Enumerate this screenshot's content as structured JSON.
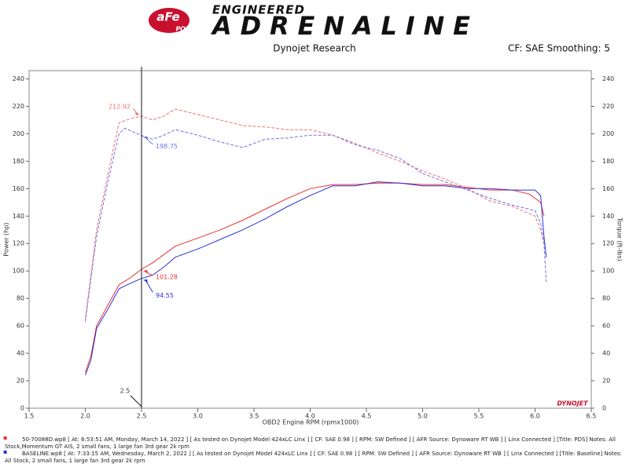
{
  "header": {
    "brand": "aFe",
    "brand_sub": "POWER",
    "tagline_top": "ENGINEERED",
    "tagline": "ADRENALINE"
  },
  "chart_data": {
    "type": "line",
    "title": "Dynojet Research",
    "subtitle": "CF: SAE Smoothing: 5",
    "x_label": "OBD2 Engine RPM (rpmx1000)",
    "y_label": "Power (hp)",
    "y2_label": "Torque (ft-lbs)",
    "watermark": "DYNOJET",
    "xlim": [
      1.5,
      6.5
    ],
    "ylim": [
      0,
      246
    ],
    "y2lim": [
      0,
      246
    ],
    "xticks": [
      1.5,
      {
        "value": 2,
        "label": "2.0"
      },
      2.5,
      {
        "value": 3,
        "label": "3.0"
      },
      3.5,
      {
        "value": 4,
        "label": "4.0"
      },
      4.5,
      {
        "value": 5,
        "label": "5.0"
      },
      5.5,
      {
        "value": 6,
        "label": "6.0"
      },
      6.5
    ],
    "yticks": [
      0,
      20,
      40,
      60,
      80,
      100,
      120,
      140,
      160,
      180,
      200,
      220,
      240
    ],
    "y2ticks": [
      0,
      20,
      40,
      60,
      80,
      100,
      120,
      140,
      160,
      180,
      200,
      220,
      240
    ],
    "grid": false,
    "series": [
      {
        "color": "#e8332f",
        "dash": false,
        "x": [
          2.0,
          2.05,
          2.1,
          2.2,
          2.3,
          2.4,
          2.5,
          2.6,
          2.7,
          2.8,
          3.0,
          3.2,
          3.4,
          3.6,
          3.8,
          4.0,
          4.2,
          4.4,
          4.6,
          4.8,
          5.0,
          5.2,
          5.4,
          5.6,
          5.8,
          5.95,
          6.0,
          6.05,
          6.08
        ],
        "values": [
          26,
          38,
          60,
          75,
          90,
          95,
          101.28,
          106,
          112,
          118,
          124,
          130,
          137,
          145,
          153,
          160,
          163,
          163,
          164,
          164,
          163,
          163,
          161,
          159,
          159,
          156,
          153,
          150,
          140
        ]
      },
      {
        "color": "#2f2fd6",
        "dash": false,
        "x": [
          2.0,
          2.05,
          2.1,
          2.2,
          2.3,
          2.4,
          2.5,
          2.6,
          2.7,
          2.8,
          3.0,
          3.2,
          3.4,
          3.6,
          3.8,
          4.0,
          4.2,
          4.4,
          4.6,
          4.8,
          5.0,
          5.2,
          5.4,
          5.6,
          5.8,
          6.0,
          6.05,
          6.08,
          6.1
        ],
        "values": [
          24,
          35,
          58,
          72,
          87,
          91,
          94.55,
          97,
          103,
          110,
          116,
          123,
          130,
          138,
          147,
          155,
          162,
          162,
          165,
          164,
          162,
          162,
          160,
          160,
          159,
          159,
          155,
          125,
          110
        ]
      },
      {
        "color": "#f07070",
        "dash": true,
        "axis": "y2",
        "x": [
          2.0,
          2.1,
          2.2,
          2.3,
          2.4,
          2.5,
          2.6,
          2.7,
          2.8,
          3.0,
          3.2,
          3.4,
          3.6,
          3.8,
          4.0,
          4.2,
          4.4,
          4.6,
          4.8,
          5.0,
          5.2,
          5.4,
          5.6,
          5.8,
          6.0,
          6.05,
          6.08
        ],
        "values": [
          65,
          130,
          170,
          208,
          211,
          212.92,
          210,
          213,
          218,
          214,
          210,
          206,
          205,
          203,
          203,
          199,
          193,
          186,
          180,
          173,
          167,
          160,
          151,
          147,
          140,
          130,
          120
        ]
      },
      {
        "color": "#7070e8",
        "dash": true,
        "axis": "y2",
        "x": [
          2.0,
          2.1,
          2.2,
          2.3,
          2.35,
          2.5,
          2.6,
          2.7,
          2.8,
          3.0,
          3.2,
          3.4,
          3.6,
          3.8,
          4.0,
          4.2,
          4.4,
          4.6,
          4.8,
          5.0,
          5.2,
          5.4,
          5.6,
          5.8,
          6.0,
          6.05,
          6.08,
          6.1
        ],
        "values": [
          63,
          125,
          165,
          200,
          204,
          198.75,
          196,
          199,
          203,
          199,
          194,
          190,
          196,
          197,
          199,
          199,
          192,
          188,
          182,
          171,
          165,
          159,
          153,
          148,
          144,
          135,
          120,
          92
        ]
      }
    ],
    "cursor": {
      "x": 2.5,
      "readouts": [
        {
          "series": 2,
          "value": 212.92
        },
        {
          "series": 3,
          "value": 198.75
        },
        {
          "series": 0,
          "value": 101.28
        },
        {
          "series": 1,
          "value": 94.55
        }
      ]
    }
  },
  "runs": [
    {
      "color": "#e8332f",
      "text": "50-70088D.wp8 [ At: 6:53:51 AM, Monday, March 14, 2022 ] [ As tested on Dynojet Model 424xLC Linx ] [ CF: SAE 0.98 ] [ RPM: SW Defined ] [ AFR Source: Dynoware RT WB ] [ Linx Connected ] [Title: PDS]  Notes: All Stock,Momentum GT AIS, 2 small fans, 1 large fan 3rd gear 2k rpm"
    },
    {
      "color": "#2f2fd6",
      "text": "BASELINE.wp8 [ At: 7:33:15 AM, Wednesday, March 2, 2022 ] [ As tested on Dynojet Model 424xLC Linx ] [ CF: SAE 0.98 ] [ RPM: SW Defined ] [ AFR Source: Dynoware RT WB ] [ Linx Connected ] [Title: Baseline]  Notes: All Stock, 2 small fans, 1 large fan 3rd gear 2k rpm"
    }
  ]
}
